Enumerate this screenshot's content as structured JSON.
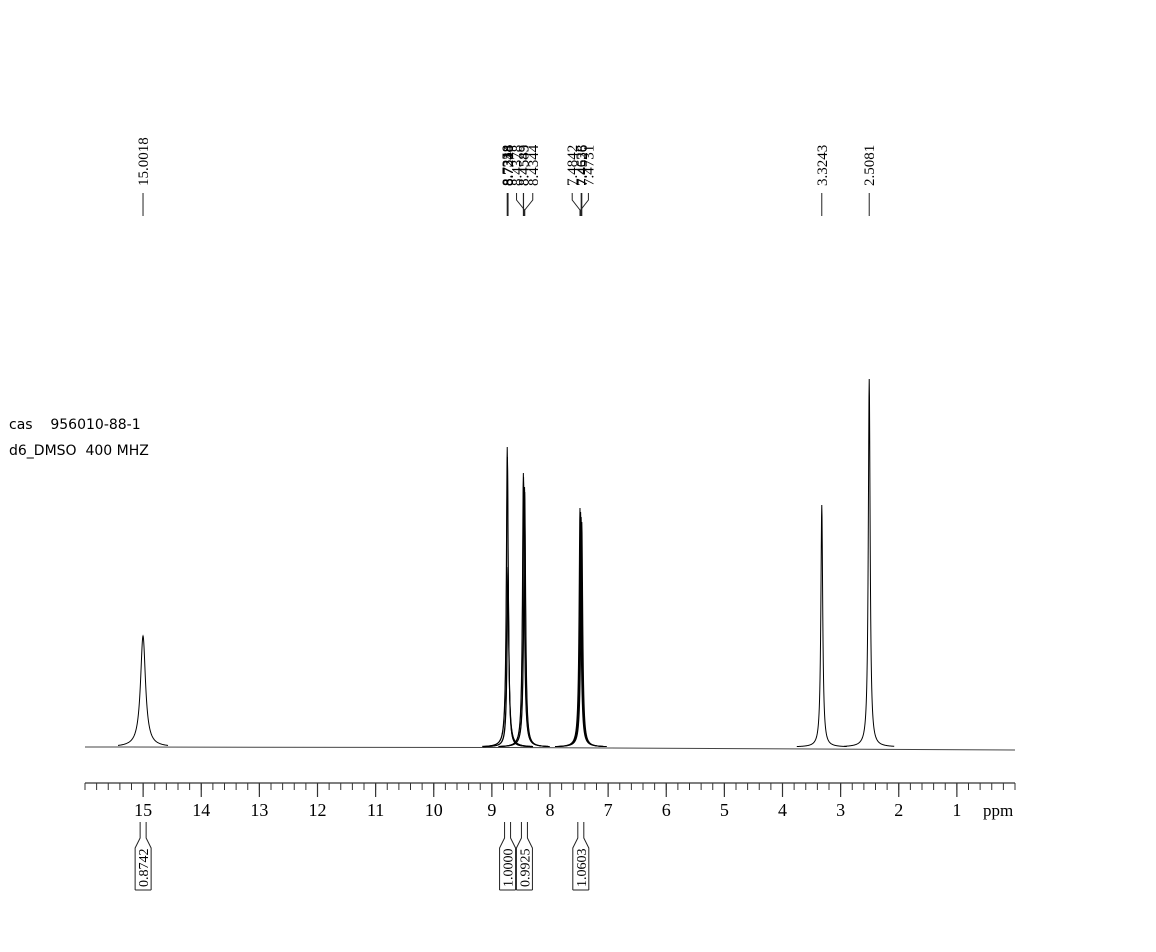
{
  "chart_data": {
    "type": "spectrum",
    "annotations": [
      "cas    956010-88-1",
      "d6_DMSO  400 MHZ"
    ],
    "xlabel": "ppm",
    "xlim": [
      16,
      0
    ],
    "xticks": [
      15,
      14,
      13,
      12,
      11,
      10,
      9,
      8,
      7,
      6,
      5,
      4,
      3,
      2,
      1
    ],
    "minor_xtick_step": 0.2,
    "color": "#000000",
    "peaks": {
      "x": [
        15.0018,
        8.7358,
        8.7324,
        8.7248,
        8.7215,
        8.4583,
        8.4549,
        8.4378,
        8.4344,
        7.4842,
        7.4731,
        7.4638,
        7.4526,
        3.3243,
        2.5081
      ],
      "values": [
        111,
        300,
        290,
        180,
        170,
        274,
        270,
        260,
        255,
        239,
        235,
        230,
        225,
        242,
        368
      ]
    },
    "integrals": {
      "x": [
        15.0,
        8.73,
        8.44,
        7.47
      ],
      "values": [
        0.8742,
        1,
        0.9925,
        1.0603
      ],
      "value_labels": [
        "0.8742",
        "1.0000",
        "0.9925",
        "1.0603"
      ]
    }
  }
}
